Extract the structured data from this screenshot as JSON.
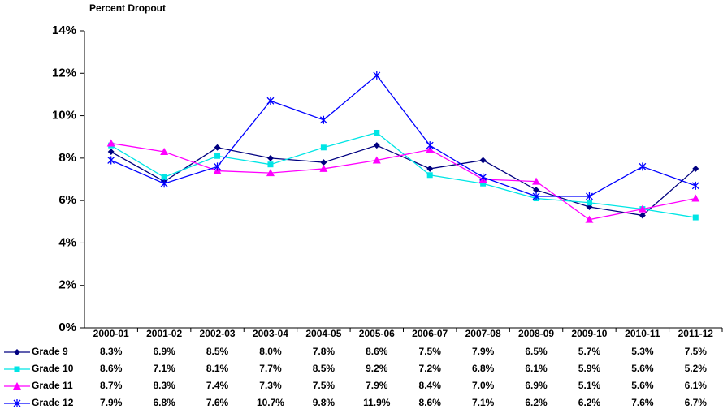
{
  "chart_data": {
    "type": "line",
    "y_label": "Percent Dropout",
    "categories": [
      "2000-01",
      "2001-02",
      "2002-03",
      "2003-04",
      "2004-05",
      "2005-06",
      "2006-07",
      "2007-08",
      "2008-09",
      "2009-10",
      "2010-11",
      "2011-12"
    ],
    "ylim": [
      0,
      14
    ],
    "yticks": [
      {
        "value": 0,
        "label": "0%"
      },
      {
        "value": 2,
        "label": "2%"
      },
      {
        "value": 4,
        "label": "4%"
      },
      {
        "value": 6,
        "label": "6%"
      },
      {
        "value": 8,
        "label": "8%"
      },
      {
        "value": 10,
        "label": "10%"
      },
      {
        "value": 12,
        "label": "12%"
      },
      {
        "value": 14,
        "label": "14%"
      }
    ],
    "grid": false,
    "series": [
      {
        "name": "Grade 9",
        "color": "#000080",
        "marker": "diamond",
        "values": [
          8.3,
          6.9,
          8.5,
          8.0,
          7.8,
          8.6,
          7.5,
          7.9,
          6.5,
          5.7,
          5.3,
          7.5
        ],
        "value_labels": [
          "8.3%",
          "6.9%",
          "8.5%",
          "8.0%",
          "7.8%",
          "8.6%",
          "7.5%",
          "7.9%",
          "6.5%",
          "5.7%",
          "5.3%",
          "7.5%"
        ]
      },
      {
        "name": "Grade 10",
        "color": "#00e5e5",
        "marker": "square",
        "values": [
          8.6,
          7.1,
          8.1,
          7.7,
          8.5,
          9.2,
          7.2,
          6.8,
          6.1,
          5.9,
          5.6,
          5.2
        ],
        "value_labels": [
          "8.6%",
          "7.1%",
          "8.1%",
          "7.7%",
          "8.5%",
          "9.2%",
          "7.2%",
          "6.8%",
          "6.1%",
          "5.9%",
          "5.6%",
          "5.2%"
        ]
      },
      {
        "name": "Grade 11",
        "color": "#ff00ff",
        "marker": "triangle",
        "values": [
          8.7,
          8.3,
          7.4,
          7.3,
          7.5,
          7.9,
          8.4,
          7.0,
          6.9,
          5.1,
          5.6,
          6.1
        ],
        "value_labels": [
          "8.7%",
          "8.3%",
          "7.4%",
          "7.3%",
          "7.5%",
          "7.9%",
          "8.4%",
          "7.0%",
          "6.9%",
          "5.1%",
          "5.6%",
          "6.1%"
        ]
      },
      {
        "name": "Grade 12",
        "color": "#0000ff",
        "marker": "star",
        "values": [
          7.9,
          6.8,
          7.6,
          10.7,
          9.8,
          11.9,
          8.6,
          7.1,
          6.2,
          6.2,
          7.6,
          6.7
        ],
        "value_labels": [
          "7.9%",
          "6.8%",
          "7.6%",
          "10.7%",
          "9.8%",
          "11.9%",
          "8.6%",
          "7.1%",
          "6.2%",
          "6.2%",
          "7.6%",
          "6.7%"
        ]
      }
    ]
  }
}
